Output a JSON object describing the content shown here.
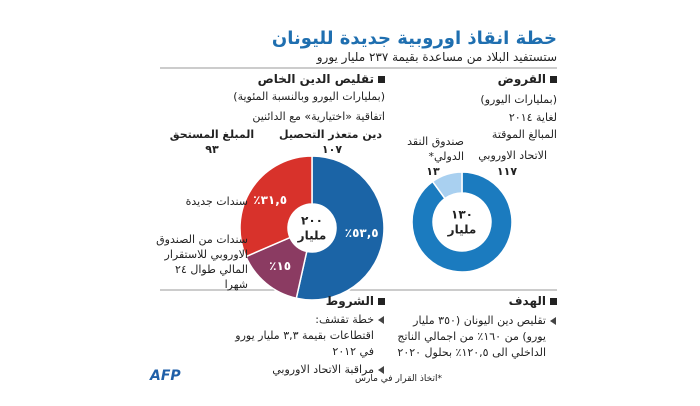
{
  "header": {
    "title": "خطة انقاذ اوروبية جديدة لليونان",
    "subtitle": "ستستفيد البلاد من مساعدة بقيمة ٢٣٧ مليار يورو"
  },
  "chart_data": [
    {
      "type": "pie",
      "title": "تقليص الدين الخاص",
      "subtitle": "(بمليارات اليورو وبالنسبة المئوية)",
      "notes": [
        "اتفاقية «اختيارية» مع الدائنين"
      ],
      "amounts": [
        {
          "label": "دين متعذر التحصيل",
          "value": 107,
          "value_label": "١٠٧"
        },
        {
          "label": "المبلغ المستحق",
          "value": 93,
          "value_label": "٩٣"
        }
      ],
      "categories": [
        null,
        "سندات من الصندوق الاوروبي للاستقرار المالي طوال ٢٤ شهرا",
        "سندات جديدة"
      ],
      "values": [
        53.5,
        15,
        31.5
      ],
      "value_labels": [
        "٥٣,٥٪",
        "١٥٪",
        "٣١,٥٪"
      ],
      "colors": [
        "#1b64a6",
        "#8b3b62",
        "#d8322b"
      ],
      "center_label": [
        "٢٠٠",
        "مليار"
      ]
    },
    {
      "type": "pie",
      "title": "القروض",
      "subtitle": "(بمليارات اليورو)",
      "notes": [
        "لغاية ٢٠١٤",
        "المبالغ الموقتة"
      ],
      "categories": [
        "الاتحاد الاوروبي",
        "صندوق النقد الدولي*"
      ],
      "values": [
        117,
        13
      ],
      "value_labels": [
        "١١٧",
        "١٣"
      ],
      "colors": [
        "#1b7bbf",
        "#a9d0f0"
      ],
      "center_label": [
        "١٣٠",
        "مليار"
      ]
    }
  ],
  "conditions": {
    "title": "الشروط",
    "items": [
      [
        "خطة تقشف:",
        "اقتطاعات بقيمة ٣,٣ مليار يورو",
        "في ٢٠١٢"
      ],
      [
        "مراقبة الاتحاد الاوروبي"
      ]
    ]
  },
  "goal": {
    "title": "الهدف",
    "lines": [
      "تقليص دين اليونان (٣٥٠ مليار",
      "يورو) من ١٦٠٪ من اجمالي الناتج",
      "الداخلي الى ١٢٠,٥٪ بحلول ٢٠٢٠"
    ]
  },
  "footer": {
    "logo": "AFP",
    "note": "*اتخاذ القرار في مارس"
  }
}
